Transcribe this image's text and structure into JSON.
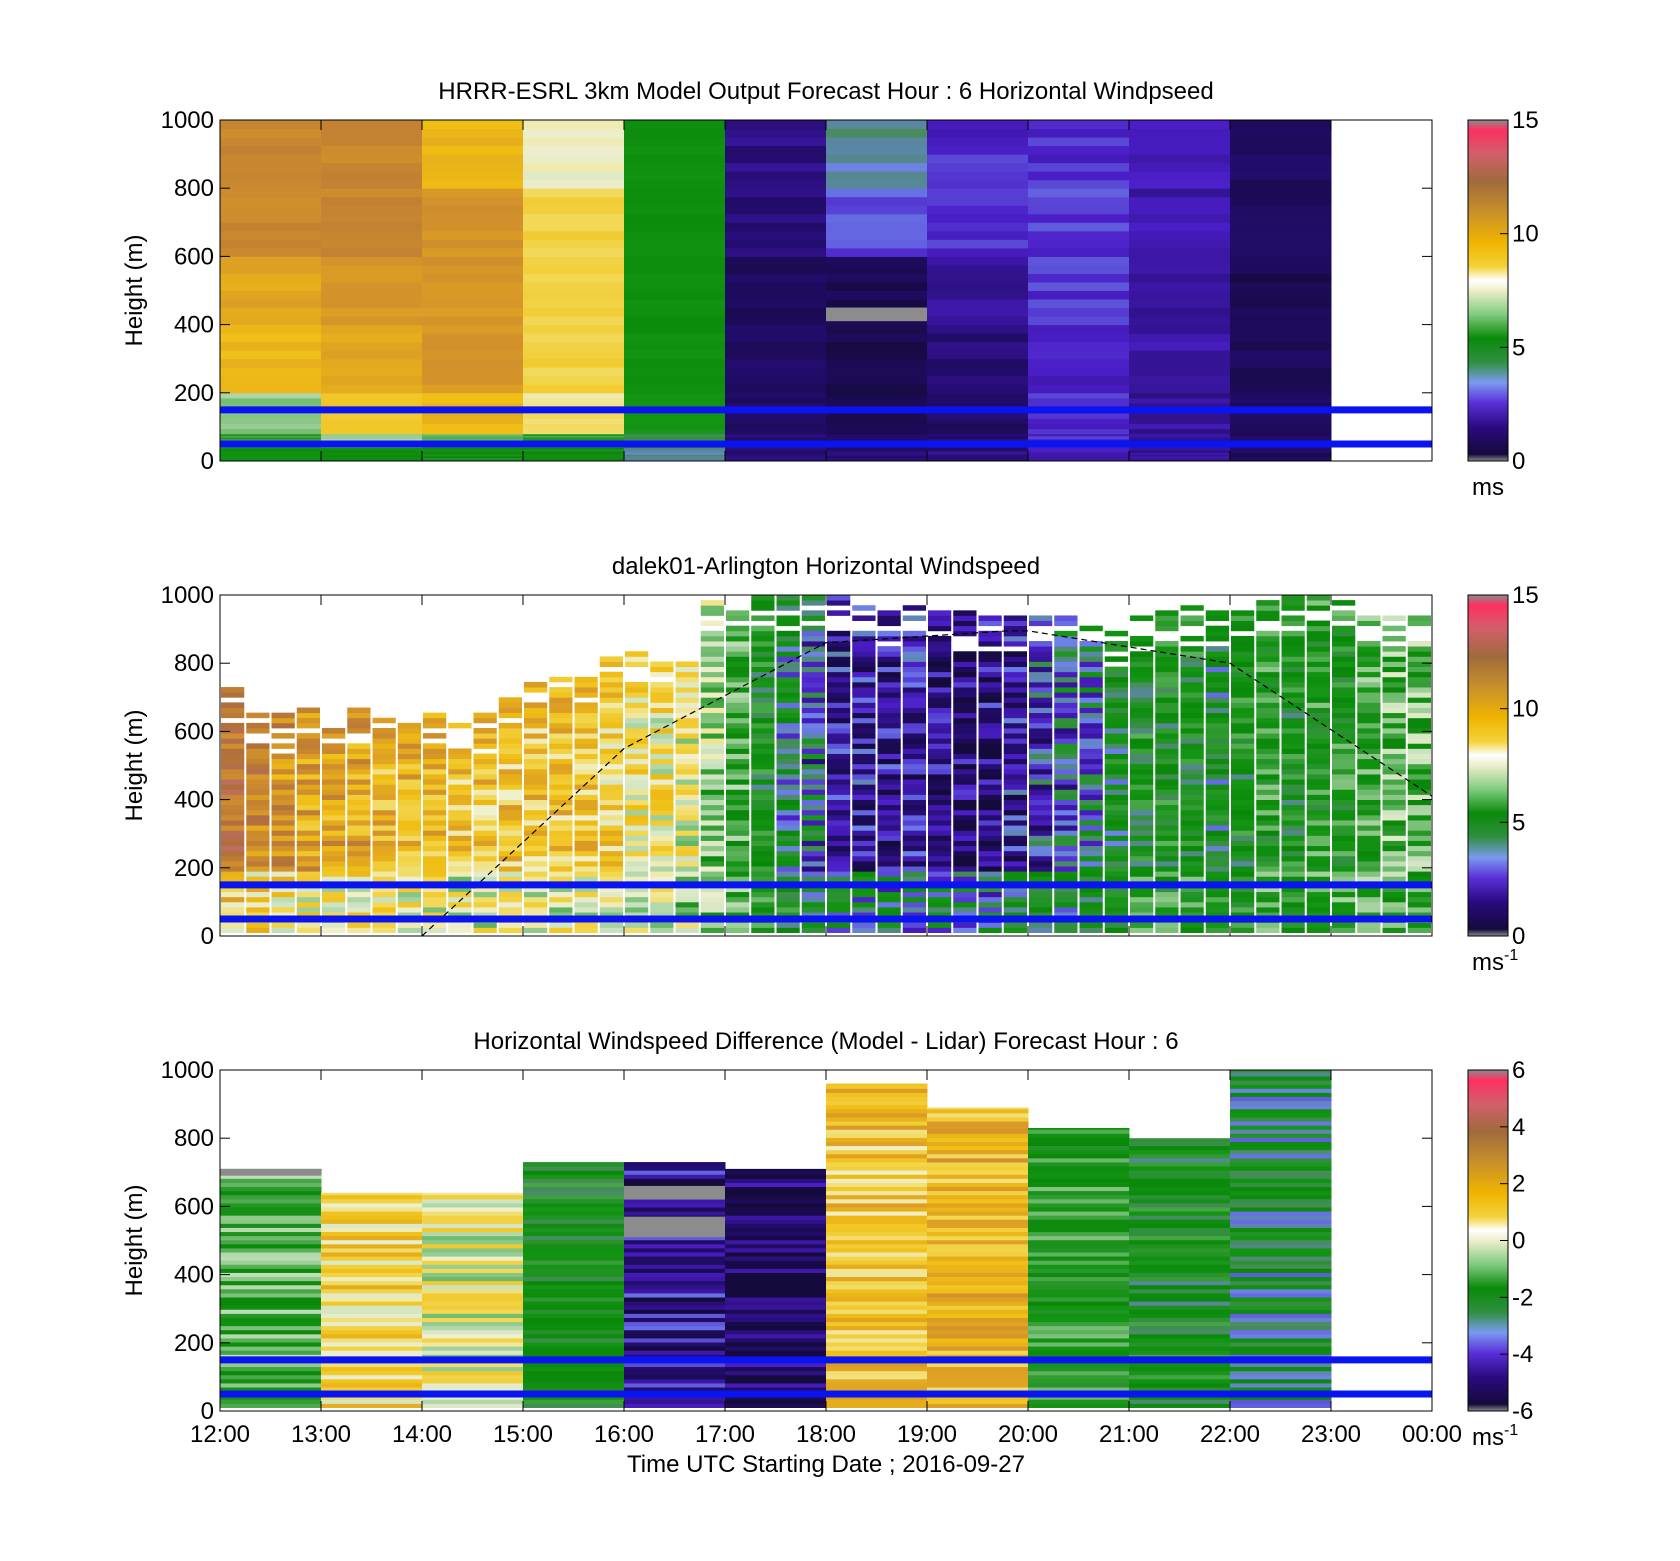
{
  "figure": {
    "xlabel": "Time UTC  Starting Date ; 2016-09-27",
    "x_tick_labels": [
      "12:00",
      "13:00",
      "14:00",
      "15:00",
      "16:00",
      "17:00",
      "18:00",
      "19:00",
      "20:00",
      "21:00",
      "22:00",
      "23:00",
      "00:00"
    ],
    "blue_reference_lines_m": [
      150,
      50
    ]
  },
  "chart_data": [
    {
      "type": "heatmap",
      "title": "HRRR-ESRL 3km Model Output   Forecast Hour : 6 Horizontal Windpseed",
      "ylabel": "Height (m)",
      "ylim": [
        0,
        1000
      ],
      "y_ticks": [
        "0",
        "200",
        "400",
        "600",
        "800",
        "1000"
      ],
      "colorbar": {
        "min": 0,
        "max": 15,
        "ticks": [
          "0",
          "5",
          "10",
          "15"
        ],
        "unit": "ms"
      },
      "hours": [
        12,
        13,
        14,
        15,
        16,
        17,
        18,
        19,
        20,
        21,
        22
      ],
      "rows_height_m": [
        20,
        60,
        150,
        300,
        500,
        700,
        900
      ],
      "values": [
        [
          4.5,
          5.5,
          6.5,
          9.5,
          10,
          11,
          11
        ],
        [
          4.5,
          6.5,
          9,
          10,
          10.5,
          11,
          11
        ],
        [
          5,
          6,
          9.5,
          10.5,
          10.5,
          10.5,
          9.5
        ],
        [
          5,
          5.5,
          8,
          8.5,
          8.5,
          8.5,
          7.5
        ],
        [
          3,
          3.5,
          4,
          4.5,
          4.5,
          4.5,
          4.5
        ],
        [
          1,
          1,
          0.8,
          0.8,
          0.7,
          1,
          1.2
        ],
        [
          1,
          0.8,
          0.5,
          0.4,
          0.5,
          2.3,
          3
        ],
        [
          1.2,
          1,
          0.8,
          1,
          1.5,
          2,
          2
        ],
        [
          1.8,
          2,
          2,
          2,
          2.2,
          2.2,
          2
        ],
        [
          1.5,
          1.5,
          1.5,
          1.6,
          1.6,
          1.7,
          1.8
        ],
        [
          0.7,
          0.7,
          0.7,
          0.6,
          0.5,
          0.6,
          0.7
        ]
      ],
      "gray_cells": [
        {
          "hour": 18,
          "range_m": [
            410,
            450
          ]
        }
      ]
    },
    {
      "type": "heatmap",
      "title": "dalek01-Arlington  Horizontal Windspeed",
      "ylabel": "Height (m)",
      "ylim": [
        0,
        1000
      ],
      "y_ticks": [
        "0",
        "200",
        "400",
        "600",
        "800",
        "1000"
      ],
      "colorbar": {
        "min": 0,
        "max": 15,
        "ticks": [
          "0",
          "5",
          "10",
          "15"
        ],
        "unit": "ms",
        "unit_exponent": "-1"
      },
      "time_steps_hours": [
        12.0,
        12.25,
        12.5,
        12.75,
        13.0,
        13.25,
        13.5,
        13.75,
        14.0,
        14.25,
        14.5,
        14.75,
        15.0,
        15.25,
        15.5,
        15.75,
        16.0,
        16.25,
        16.5,
        16.75,
        17.0,
        17.25,
        17.5,
        17.75,
        18.0,
        18.25,
        18.5,
        18.75,
        19.0,
        19.25,
        19.5,
        19.75,
        20.0,
        20.25,
        20.5,
        20.75,
        21.0,
        21.25,
        21.5,
        21.75,
        22.0,
        22.25,
        22.5,
        22.75,
        23.0,
        23.25,
        23.5,
        23.75
      ],
      "column_top_m": [
        730,
        660,
        650,
        660,
        650,
        670,
        650,
        640,
        650,
        620,
        650,
        690,
        740,
        750,
        780,
        820,
        830,
        820,
        800,
        1000,
        1000,
        1000,
        1000,
        1000,
        1000,
        1000,
        960,
        960,
        950,
        950,
        940,
        940,
        940,
        930,
        920,
        900,
        940,
        960,
        960,
        960,
        960,
        980,
        1000,
        1000,
        1000,
        960,
        940,
        940
      ],
      "column_speed_ms": [
        11.5,
        11,
        10.5,
        10,
        10,
        10,
        9.5,
        9.5,
        9.5,
        9,
        9,
        9,
        9,
        9,
        9,
        8.5,
        8,
        8,
        7.5,
        6.5,
        5.5,
        4.5,
        3.5,
        2.5,
        1.5,
        1.5,
        1.2,
        1.5,
        1,
        0.8,
        1,
        1.5,
        2,
        2.5,
        3,
        4,
        4.5,
        4.5,
        4.5,
        4,
        4.5,
        5,
        4.5,
        5,
        5,
        5.5,
        6,
        6
      ],
      "sunrise_sunset_curve": {
        "x_hours": [
          14,
          16,
          18,
          19.8,
          20,
          22,
          24
        ],
        "height_m": [
          0,
          550,
          860,
          895,
          895,
          800,
          410
        ]
      }
    },
    {
      "type": "heatmap",
      "title": "Horizontal Windspeed Difference (Model - Lidar) Forecast Hour : 6",
      "ylabel": "Height (m)",
      "ylim": [
        0,
        1000
      ],
      "y_ticks": [
        "0",
        "200",
        "400",
        "600",
        "800",
        "1000"
      ],
      "colorbar": {
        "min": -6,
        "max": 6,
        "ticks": [
          "-6",
          "-4",
          "-2",
          "0",
          "2",
          "4",
          "6"
        ],
        "unit": "ms",
        "unit_exponent": "-1"
      },
      "hours": [
        12,
        13,
        14,
        15,
        16,
        17,
        18,
        19,
        20,
        21,
        22
      ],
      "column_top_m": [
        710,
        640,
        640,
        730,
        730,
        710,
        960,
        890,
        830,
        800,
        1000
      ],
      "column_difference_ms": [
        -1.5,
        0.8,
        0,
        -2.5,
        -5,
        -5.5,
        1.2,
        1.5,
        -2,
        -2.5,
        -3
      ],
      "gray_cells": [
        {
          "hour": 12,
          "range_m": [
            690,
            710
          ]
        },
        {
          "hour": 16,
          "range_m": [
            620,
            660
          ]
        },
        {
          "hour": 16,
          "range_m": [
            510,
            570
          ]
        }
      ]
    }
  ]
}
